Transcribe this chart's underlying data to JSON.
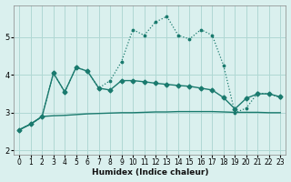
{
  "xlabel": "Humidex (Indice chaleur)",
  "bg_color": "#daf0ee",
  "grid_color": "#b0d8d4",
  "line_color": "#1a7a6e",
  "x": [
    0,
    1,
    2,
    3,
    4,
    5,
    6,
    7,
    8,
    9,
    10,
    11,
    12,
    13,
    14,
    15,
    16,
    17,
    18,
    19,
    20,
    21,
    22,
    23
  ],
  "line_flat": [
    2.55,
    2.7,
    2.9,
    2.92,
    2.93,
    2.95,
    2.97,
    2.98,
    2.99,
    3.0,
    3.0,
    3.01,
    3.02,
    3.02,
    3.03,
    3.03,
    3.03,
    3.03,
    3.02,
    3.01,
    3.01,
    3.01,
    3.0,
    3.0
  ],
  "line_mid": [
    2.55,
    2.7,
    2.9,
    4.05,
    3.55,
    4.2,
    4.1,
    3.65,
    3.6,
    3.85,
    3.85,
    3.82,
    3.78,
    3.75,
    3.72,
    3.7,
    3.65,
    3.6,
    3.4,
    3.1,
    3.38,
    3.5,
    3.5,
    3.42
  ],
  "line_dotted": [
    2.55,
    2.7,
    2.9,
    4.05,
    3.55,
    4.2,
    4.1,
    3.65,
    3.85,
    4.35,
    5.2,
    5.05,
    5.4,
    5.55,
    5.05,
    4.95,
    5.2,
    5.05,
    4.25,
    3.0,
    3.12,
    3.52,
    3.5,
    3.4
  ],
  "ylim": [
    1.9,
    5.85
  ],
  "xlim": [
    -0.5,
    23.5
  ],
  "yticks": [
    2,
    3,
    4,
    5
  ],
  "xticks": [
    0,
    1,
    2,
    3,
    4,
    5,
    6,
    7,
    8,
    9,
    10,
    11,
    12,
    13,
    14,
    15,
    16,
    17,
    18,
    19,
    20,
    21,
    22,
    23
  ]
}
